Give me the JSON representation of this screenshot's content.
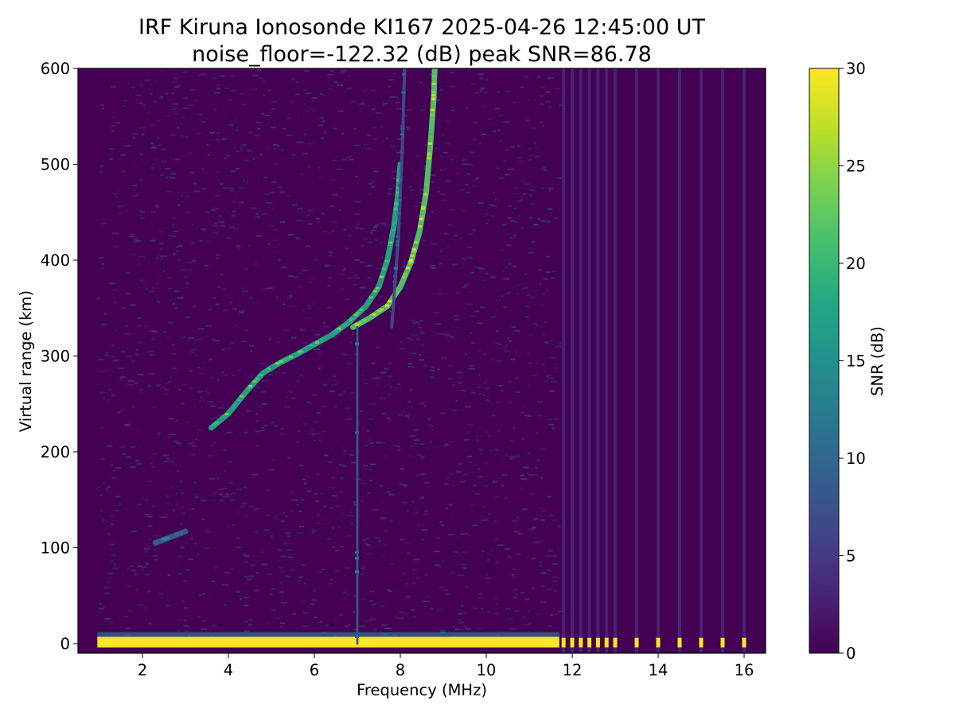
{
  "chart_data": {
    "type": "heatmap",
    "title": "IRF Kiruna Ionosonde KI167 2025-04-26 12:45:00  UT",
    "subtitle": "noise_floor=-122.32 (dB) peak SNR=86.78",
    "xlabel": "Frequency (MHz)",
    "ylabel": "Virtual range (km)",
    "xlim": [
      0.5,
      16.5
    ],
    "ylim": [
      -10,
      600
    ],
    "xticks": [
      "2",
      "4",
      "6",
      "8",
      "10",
      "12",
      "14",
      "16"
    ],
    "xtick_values": [
      2,
      4,
      6,
      8,
      10,
      12,
      14,
      16
    ],
    "yticks": [
      "0",
      "100",
      "200",
      "300",
      "400",
      "500",
      "600"
    ],
    "ytick_values": [
      0,
      100,
      200,
      300,
      400,
      500,
      600
    ],
    "colorbar": {
      "label": "SNR (dB)",
      "range": [
        0,
        30
      ],
      "colormap": "viridis",
      "ticks": [
        "0",
        "5",
        "10",
        "15",
        "20",
        "25",
        "30"
      ],
      "tick_values": [
        0,
        5,
        10,
        15,
        20,
        25,
        30
      ]
    },
    "sweep": {
      "continuous_range_mhz": [
        0.95,
        11.7
      ],
      "discrete_frequencies_mhz": [
        11.8,
        12.0,
        12.2,
        12.4,
        12.6,
        12.8,
        13.0,
        13.5,
        14.0,
        14.5,
        15.0,
        15.5,
        16.0
      ]
    },
    "series": [
      {
        "trace": "ground echo band",
        "points": [
          [
            0.95,
            2
          ],
          [
            11.7,
            2
          ]
        ],
        "snr_db": 30
      },
      {
        "trace": "sporadic E echo",
        "points": [
          [
            2.3,
            105
          ],
          [
            2.6,
            110
          ],
          [
            3.0,
            117
          ]
        ],
        "snr_db": 9
      },
      {
        "trace": "F-layer ordinary trace",
        "points": [
          [
            3.6,
            225
          ],
          [
            4.0,
            240
          ],
          [
            4.4,
            262
          ],
          [
            4.8,
            282
          ],
          [
            5.2,
            293
          ],
          [
            5.6,
            302
          ],
          [
            6.0,
            312
          ],
          [
            6.4,
            322
          ],
          [
            6.8,
            335
          ],
          [
            7.2,
            352
          ],
          [
            7.5,
            372
          ],
          [
            7.7,
            400
          ],
          [
            7.85,
            435
          ],
          [
            7.95,
            470
          ],
          [
            8.0,
            500
          ]
        ],
        "snr_db": 18
      },
      {
        "trace": "F-layer extraordinary trace",
        "points": [
          [
            6.9,
            330
          ],
          [
            7.3,
            340
          ],
          [
            7.7,
            352
          ],
          [
            8.0,
            372
          ],
          [
            8.25,
            398
          ],
          [
            8.45,
            430
          ],
          [
            8.6,
            470
          ],
          [
            8.7,
            520
          ],
          [
            8.78,
            570
          ],
          [
            8.8,
            600
          ]
        ],
        "snr_db": 22
      },
      {
        "trace": "second-hop trace",
        "points": [
          [
            7.8,
            330
          ],
          [
            7.95,
            420
          ],
          [
            8.05,
            520
          ],
          [
            8.1,
            600
          ]
        ],
        "snr_db": 7
      },
      {
        "trace": "interference line",
        "points": [
          [
            7.0,
            0
          ],
          [
            7.0,
            330
          ]
        ],
        "snr_db": 8
      }
    ]
  }
}
